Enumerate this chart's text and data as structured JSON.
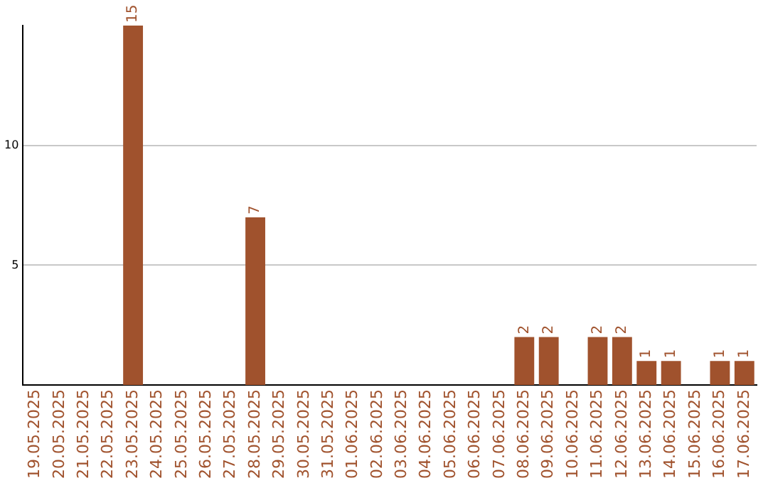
{
  "chart_data": {
    "type": "bar",
    "categories": [
      "19.05.2025",
      "20.05.2025",
      "21.05.2025",
      "22.05.2025",
      "23.05.2025",
      "24.05.2025",
      "25.05.2025",
      "26.05.2025",
      "27.05.2025",
      "28.05.2025",
      "29.05.2025",
      "30.05.2025",
      "31.05.2025",
      "01.06.2025",
      "02.06.2025",
      "03.06.2025",
      "04.06.2025",
      "05.06.2025",
      "06.06.2025",
      "07.06.2025",
      "08.06.2025",
      "09.06.2025",
      "10.06.2025",
      "11.06.2025",
      "12.06.2025",
      "13.06.2025",
      "14.06.2025",
      "15.06.2025",
      "16.06.2025",
      "17.06.2025"
    ],
    "values": [
      0,
      0,
      0,
      0,
      15,
      0,
      0,
      0,
      0,
      7,
      0,
      0,
      0,
      0,
      0,
      0,
      0,
      0,
      0,
      0,
      2,
      2,
      0,
      2,
      2,
      1,
      1,
      0,
      1,
      1
    ],
    "value_labels": [
      null,
      null,
      null,
      null,
      "15",
      null,
      null,
      null,
      null,
      "7",
      null,
      null,
      null,
      null,
      null,
      null,
      null,
      null,
      null,
      null,
      "2",
      "2",
      null,
      "2",
      "2",
      "1",
      "1",
      null,
      "1",
      "1"
    ],
    "color": "#a0522d",
    "ylim": [
      0,
      15
    ],
    "yticks": [
      5,
      10
    ],
    "grid": "y",
    "legend": false
  }
}
